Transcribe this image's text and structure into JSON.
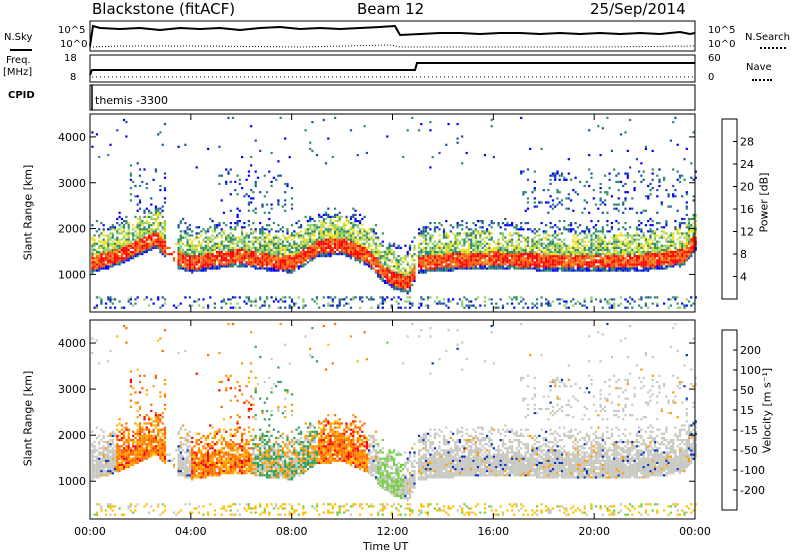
{
  "header": {
    "station": "Blackstone (fitACF)",
    "beam": "Beam 12",
    "date": "25/Sep/2014"
  },
  "panels": {
    "nsky_label": "N.Sky",
    "nsky_ticks": [
      "10^5",
      "10^0"
    ],
    "nsearch_label": "N.Search",
    "nsearch_ticks": [
      "10^5",
      "10^0"
    ],
    "freq_label": "Freq.",
    "freq_unit": "[MHz]",
    "freq_ticks": [
      "18",
      "8"
    ],
    "nave_label": "Nave",
    "nave_ticks": [
      "60",
      "0"
    ],
    "cpid_label": "CPID",
    "cpid_value": "themis -3300"
  },
  "colors": {
    "power_scale": [
      "#0000ff",
      "#1f4fa8",
      "#2f8a6a",
      "#8fcf6a",
      "#f0e020",
      "#f5a020",
      "#f06010",
      "#ff0000"
    ],
    "velocity_scale": [
      "#ff0000",
      "#ff6a00",
      "#ff9a00",
      "#ffc000",
      "#c8c8c0",
      "#70d040",
      "#30a060",
      "#0030c0"
    ]
  },
  "chart_data": [
    {
      "type": "heatmap",
      "title": "",
      "ylabel": "Slant Range [km]",
      "xlabel": "Time UT",
      "x_ticks": [
        "00:00",
        "04:00",
        "08:00",
        "12:00",
        "16:00",
        "20:00",
        "00:00"
      ],
      "y_ticks": [
        "1000",
        "2000",
        "3000",
        "4000"
      ],
      "ylim": [
        180,
        4500
      ],
      "colorbar_label": "Power [dB]",
      "colorbar_ticks": [
        "4",
        "8",
        "12",
        "16",
        "20",
        "24",
        "28"
      ],
      "colorbar_range": [
        0,
        30
      ],
      "band_center_hours": [
        0,
        1,
        2,
        2.6,
        3.2,
        4,
        5,
        6,
        7,
        8,
        9,
        10,
        11,
        11.5,
        12,
        12.6,
        13,
        14,
        16,
        18,
        20,
        22,
        23.5,
        24
      ],
      "band_center_km": [
        1250,
        1400,
        1650,
        1800,
        1400,
        1250,
        1350,
        1400,
        1300,
        1250,
        1600,
        1650,
        1400,
        1100,
        900,
        800,
        1250,
        1300,
        1350,
        1300,
        1300,
        1300,
        1400,
        1750
      ]
    },
    {
      "type": "heatmap",
      "title": "",
      "ylabel": "Slant Range [km]",
      "xlabel": "Time UT",
      "x_ticks": [
        "00:00",
        "04:00",
        "08:00",
        "12:00",
        "16:00",
        "20:00",
        "00:00"
      ],
      "y_ticks": [
        "1000",
        "2000",
        "3000",
        "4000"
      ],
      "ylim": [
        180,
        4500
      ],
      "colorbar_label": "Velocity [m s⁻¹]",
      "colorbar_ticks": [
        "200",
        "100",
        "50",
        "15",
        "-15",
        "-50",
        "-100",
        "-200"
      ],
      "colorbar_range": [
        -250,
        250
      ]
    }
  ]
}
